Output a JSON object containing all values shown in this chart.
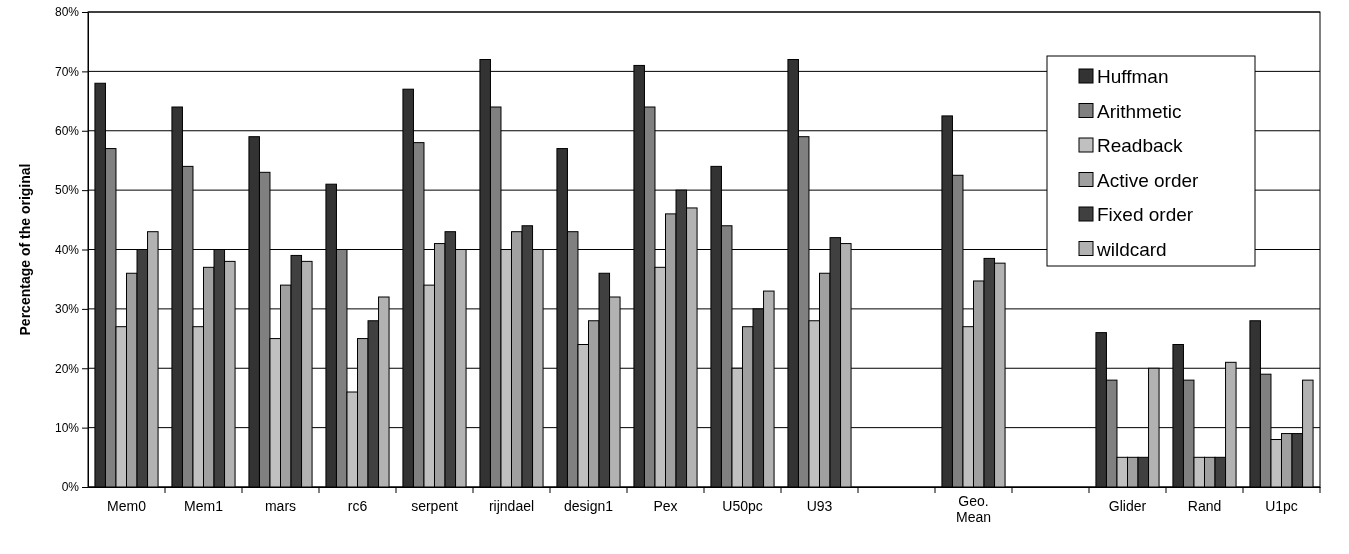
{
  "chart_data": {
    "type": "bar",
    "ylabel": "Percentage of the original",
    "categories": [
      "Mem0",
      "Mem1",
      "mars",
      "rc6",
      "serpent",
      "rijndael",
      "design1",
      "Pex",
      "U50pc",
      "U93",
      null,
      "Geo. Mean",
      null,
      "Glider",
      "Rand",
      "U1pc"
    ],
    "series": [
      {
        "name": "Huffman",
        "color": "#333333",
        "values": [
          68,
          64,
          59,
          51,
          67,
          72,
          57,
          71,
          54,
          72,
          null,
          62.5,
          null,
          26,
          24,
          28
        ]
      },
      {
        "name": "Arithmetic",
        "color": "#808080",
        "values": [
          57,
          54,
          53,
          40,
          58,
          64,
          43,
          64,
          44,
          59,
          null,
          52.5,
          null,
          18,
          18,
          19
        ]
      },
      {
        "name": "Readback",
        "color": "#c0c0c0",
        "values": [
          27,
          27,
          25,
          16,
          34,
          40,
          24,
          37,
          20,
          28,
          null,
          27,
          null,
          5,
          5,
          8
        ]
      },
      {
        "name": "Active order",
        "color": "#a0a0a0",
        "values": [
          36,
          37,
          34,
          25,
          41,
          43,
          28,
          46,
          27,
          36,
          null,
          34.7,
          null,
          5,
          5,
          9
        ]
      },
      {
        "name": "Fixed order",
        "color": "#404040",
        "values": [
          40,
          40,
          39,
          28,
          43,
          44,
          36,
          50,
          30,
          42,
          null,
          38.5,
          null,
          5,
          5,
          9
        ]
      },
      {
        "name": "wildcard",
        "color": "#b2b2b2",
        "values": [
          43,
          38,
          38,
          32,
          40,
          40,
          32,
          47,
          33,
          41,
          null,
          37.7,
          null,
          20,
          21,
          18
        ]
      }
    ],
    "ylim": [
      0,
      80
    ],
    "yticks": [
      {
        "value": 0,
        "label": "0%"
      },
      {
        "value": 10,
        "label": "10%"
      },
      {
        "value": 20,
        "label": "20%"
      },
      {
        "value": 30,
        "label": "30%"
      },
      {
        "value": 40,
        "label": "40%"
      },
      {
        "value": 50,
        "label": "50%"
      },
      {
        "value": 60,
        "label": "60%"
      },
      {
        "value": 70,
        "label": "70%"
      },
      {
        "value": 80,
        "label": "80%"
      }
    ],
    "grid": "y",
    "legend": "top right"
  }
}
